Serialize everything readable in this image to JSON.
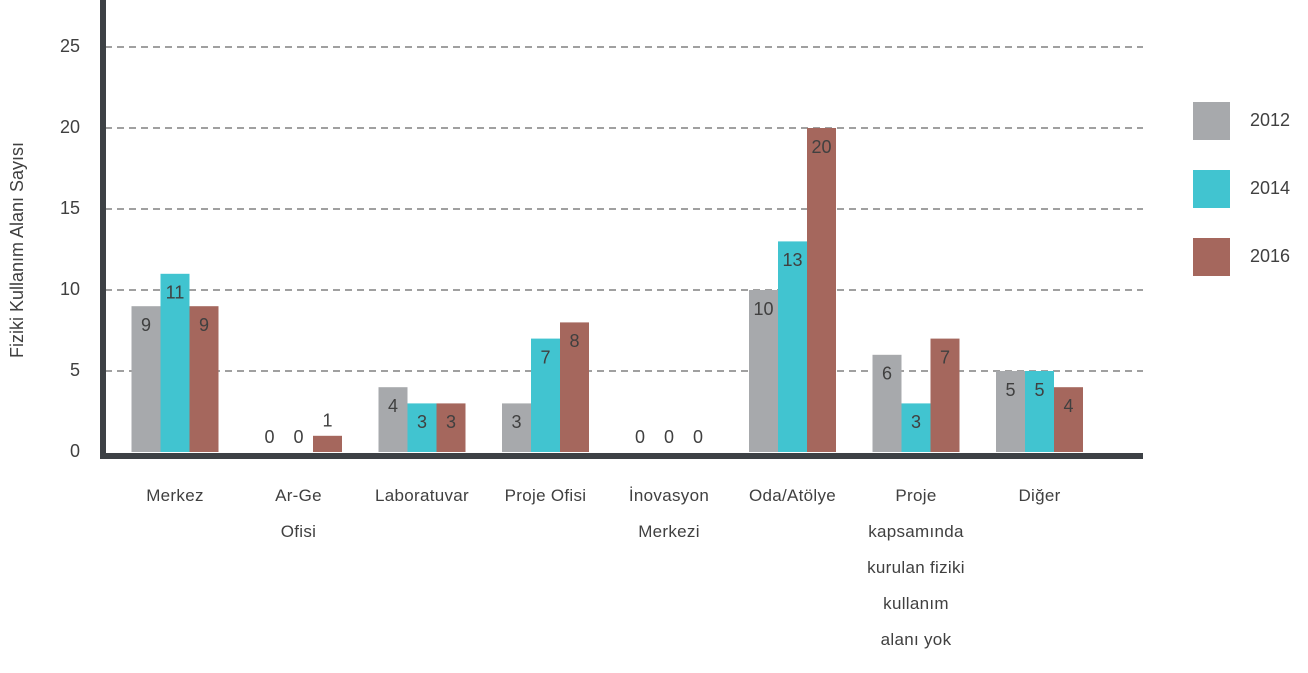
{
  "chart_data": {
    "type": "bar",
    "y_label": "Fiziki Kullanım Alanı Sayısı",
    "categories": [
      "Merkez",
      "Ar-Ge\nOfisi",
      "Laboratuvar",
      "Proje Ofisi",
      "İnovasyon\nMerkezi",
      "Oda/Atölye",
      "Proje\nkapsamında\nkurulan fiziki\nkullanım\nalanı yok",
      "Diğer"
    ],
    "series": [
      {
        "name": "2012",
        "color": "#a7a9ac",
        "values": [
          9,
          0,
          4,
          3,
          0,
          10,
          6,
          5
        ]
      },
      {
        "name": "2014",
        "color": "#41c4d0",
        "values": [
          11,
          0,
          3,
          7,
          0,
          13,
          3,
          5
        ]
      },
      {
        "name": "2016",
        "color": "#a5675d",
        "values": [
          9,
          1,
          3,
          8,
          0,
          20,
          7,
          4
        ]
      }
    ],
    "ylim": [
      0,
      25
    ],
    "yticks": [
      0,
      5,
      10,
      15,
      20,
      25
    ],
    "grid": true,
    "legend": "right"
  }
}
